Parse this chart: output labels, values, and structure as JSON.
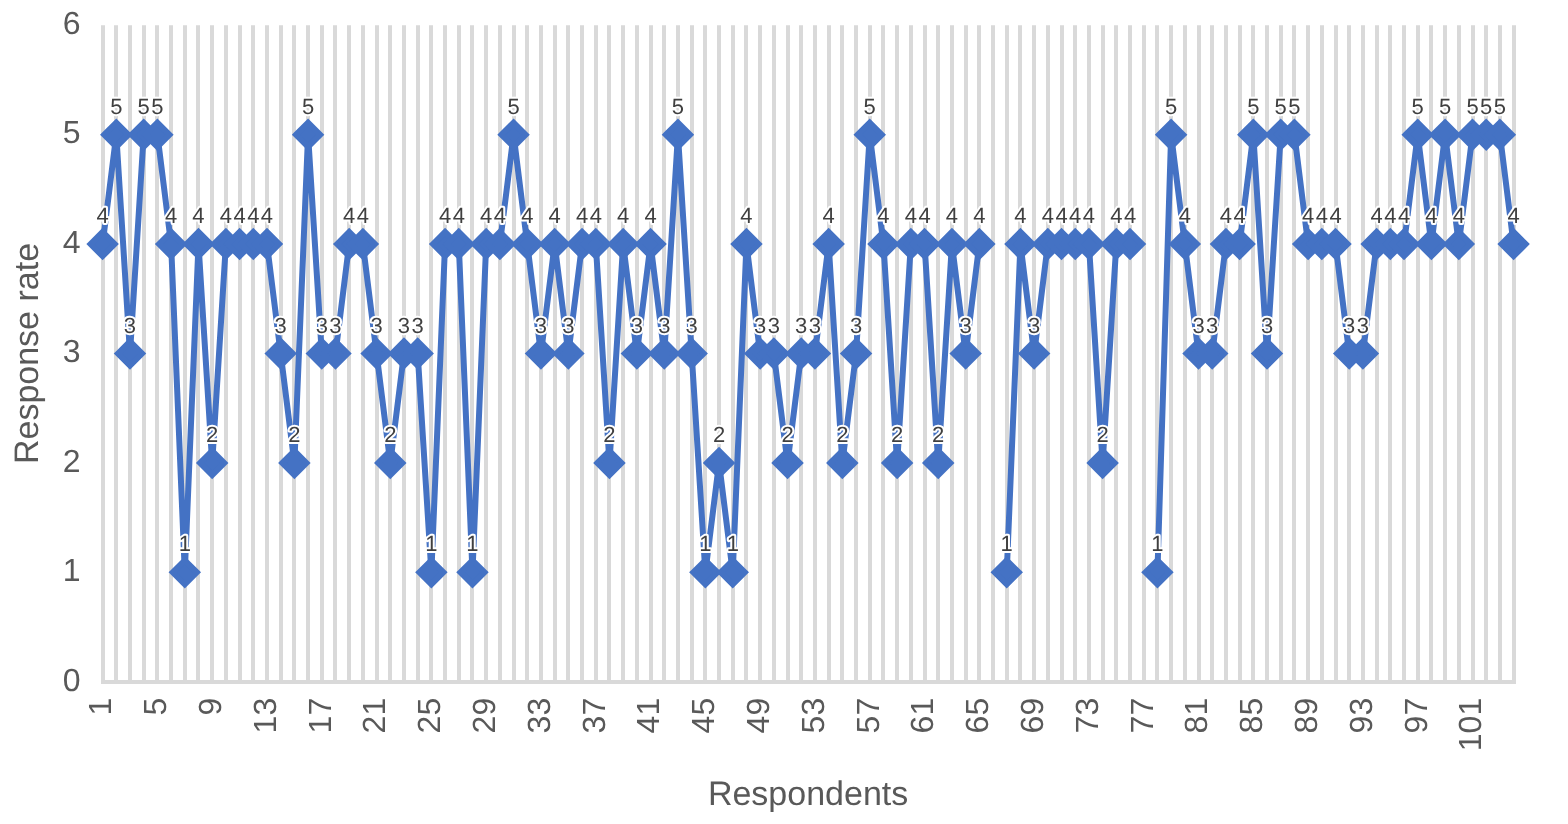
{
  "chart_data": {
    "type": "line",
    "xlabel": "Respondents",
    "ylabel": "Response rate",
    "categories": [
      "1",
      null,
      null,
      null,
      "5",
      null,
      null,
      null,
      "9",
      null,
      null,
      null,
      "13",
      null,
      null,
      null,
      "17",
      null,
      null,
      null,
      "21",
      null,
      null,
      null,
      "25",
      null,
      null,
      null,
      "29",
      null,
      null,
      null,
      "33",
      null,
      null,
      null,
      "37",
      null,
      null,
      null,
      "41",
      null,
      null,
      null,
      "45",
      null,
      null,
      null,
      "49",
      null,
      null,
      null,
      "53",
      null,
      null,
      null,
      "57",
      null,
      null,
      null,
      "61",
      null,
      null,
      null,
      "65",
      null,
      null,
      null,
      "69",
      null,
      null,
      null,
      "73",
      null,
      null,
      null,
      "77",
      null,
      null,
      null,
      "81",
      null,
      null,
      null,
      "85",
      null,
      null,
      null,
      "89",
      null,
      null,
      null,
      "93",
      null,
      null,
      null,
      "97",
      null,
      null,
      null,
      "101",
      null,
      null,
      null
    ],
    "series": [
      {
        "color": "#4472c4",
        "values": [
          4,
          5,
          3,
          5,
          5,
          4,
          1,
          4,
          2,
          4,
          4,
          4,
          4,
          3,
          2,
          5,
          3,
          3,
          4,
          4,
          3,
          2,
          3,
          3,
          1,
          4,
          4,
          1,
          4,
          4,
          5,
          4,
          3,
          4,
          3,
          4,
          4,
          2,
          4,
          3,
          4,
          3,
          5,
          3,
          1,
          2,
          1,
          4,
          3,
          3,
          2,
          3,
          3,
          4,
          2,
          3,
          5,
          4,
          2,
          4,
          4,
          2,
          4,
          3,
          4,
          null,
          1,
          4,
          3,
          4,
          4,
          4,
          4,
          2,
          4,
          4,
          null,
          1,
          5,
          4,
          3,
          3,
          4,
          4,
          5,
          3,
          5,
          5,
          4,
          4,
          4,
          3,
          3,
          4,
          4,
          4,
          5,
          4,
          5,
          4,
          5,
          5,
          5,
          4
        ]
      }
    ],
    "ylim": [
      0,
      6
    ],
    "yticks": [
      0,
      1,
      2,
      3,
      4,
      5,
      6
    ],
    "grid": "x",
    "legend": false,
    "marker": "diamond",
    "line_style": "solid",
    "data_labels": true
  }
}
